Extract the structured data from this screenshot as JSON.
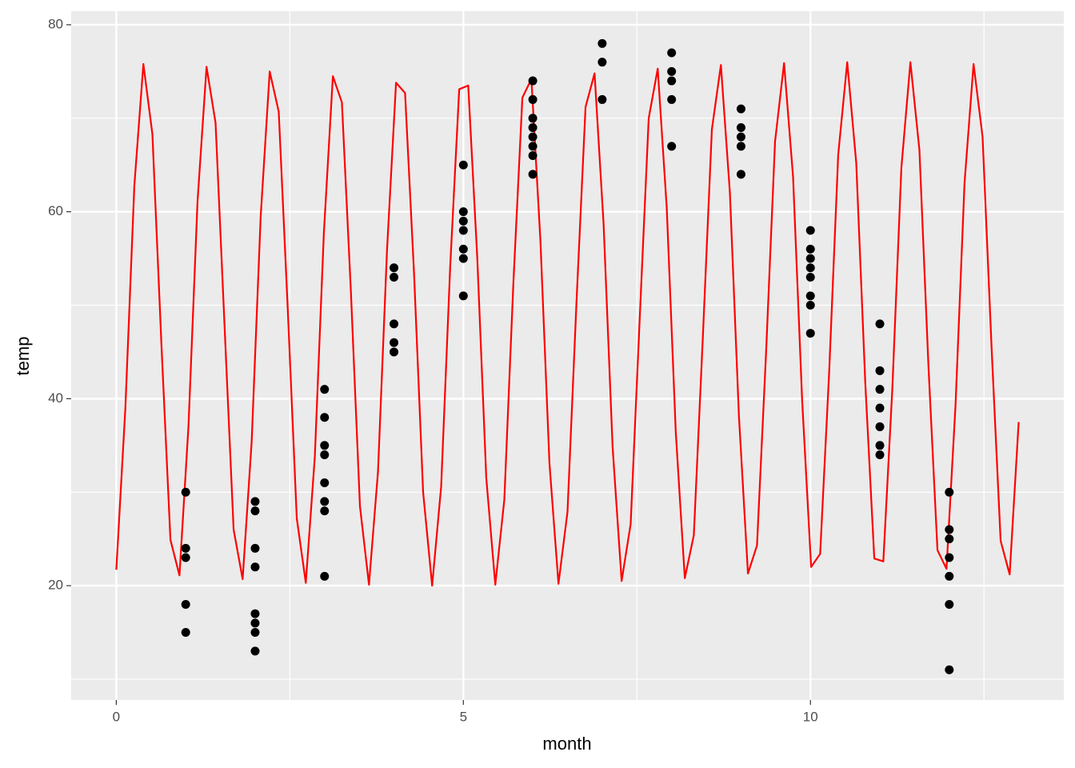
{
  "chart_data": {
    "type": "scatter",
    "x_label": "month",
    "y_label": "temp",
    "xlim": [
      -0.65,
      13.65
    ],
    "ylim": [
      7.77,
      81.45
    ],
    "xticks": [
      0,
      5,
      10
    ],
    "yticks": [
      20,
      40,
      60,
      80
    ],
    "x_minor_ticks": [
      2.5,
      7.5,
      12.5
    ],
    "y_minor_ticks": [
      10,
      30,
      50,
      70
    ],
    "grid": true,
    "panel_color": "#ebebeb",
    "series": [
      {
        "type": "scatter",
        "color": "#000000",
        "x": [
          1,
          1,
          1,
          1,
          1,
          2,
          2,
          2,
          2,
          2,
          2,
          2,
          2,
          3,
          3,
          3,
          3,
          3,
          3,
          3,
          3,
          4,
          4,
          4,
          4,
          4,
          5,
          5,
          5,
          5,
          5,
          5,
          5,
          6,
          6,
          6,
          6,
          6,
          6,
          6,
          6,
          7,
          7,
          7,
          8,
          8,
          8,
          8,
          8,
          9,
          9,
          9,
          9,
          9,
          10,
          10,
          10,
          10,
          10,
          10,
          10,
          10,
          11,
          11,
          11,
          11,
          11,
          11,
          11,
          12,
          12,
          12,
          12,
          12,
          12,
          12
        ],
        "values": [
          30,
          24,
          23,
          18,
          15,
          29,
          28,
          24,
          22,
          17,
          16,
          15,
          13,
          41,
          38,
          35,
          34,
          31,
          29,
          28,
          21,
          54,
          53,
          48,
          46,
          45,
          65,
          60,
          59,
          58,
          56,
          55,
          51,
          74,
          72,
          70,
          69,
          68,
          67,
          66,
          64,
          78,
          76,
          72,
          77,
          75,
          74,
          72,
          67,
          71,
          69,
          68,
          67,
          64,
          58,
          56,
          55,
          54,
          53,
          51,
          50,
          47,
          48,
          43,
          41,
          39,
          37,
          35,
          34,
          30,
          26,
          25,
          23,
          21,
          18,
          11
        ]
      },
      {
        "type": "line",
        "color": "#ff0000",
        "x": [
          0,
          0.13,
          0.26,
          0.39,
          0.52,
          0.65,
          0.78,
          0.91,
          1.04,
          1.17,
          1.3,
          1.43,
          1.56,
          1.69,
          1.82,
          1.95,
          2.08,
          2.21,
          2.34,
          2.47,
          2.6,
          2.73,
          2.86,
          2.99,
          3.12,
          3.25,
          3.38,
          3.51,
          3.64,
          3.77,
          3.9,
          4.03,
          4.16,
          4.29,
          4.42,
          4.55,
          4.68,
          4.81,
          4.94,
          5.07,
          5.2,
          5.33,
          5.46,
          5.59,
          5.72,
          5.85,
          5.98,
          6.11,
          6.24,
          6.37,
          6.5,
          6.63,
          6.76,
          6.89,
          7.02,
          7.15,
          7.28,
          7.41,
          7.54,
          7.67,
          7.8,
          7.93,
          8.06,
          8.19,
          8.32,
          8.45,
          8.58,
          8.71,
          8.84,
          8.97,
          9.1,
          9.23,
          9.36,
          9.49,
          9.62,
          9.75,
          9.88,
          10.01,
          10.14,
          10.27,
          10.4,
          10.53,
          10.66,
          10.79,
          10.92,
          11.05,
          11.18,
          11.31,
          11.44,
          11.57,
          11.7,
          11.83,
          11.96,
          12.09,
          12.22,
          12.35,
          12.48,
          12.61,
          12.74,
          12.87,
          13
        ],
        "values": [
          21.7,
          38.9,
          62.8,
          75.8,
          68.3,
          45.8,
          24.9,
          21.1,
          37.1,
          61.1,
          75.5,
          69.5,
          47.7,
          26.0,
          20.7,
          35.4,
          59.5,
          75.0,
          70.7,
          49.6,
          27.2,
          20.3,
          33.8,
          57.7,
          74.5,
          71.7,
          51.4,
          28.5,
          20.1,
          32.2,
          55.9,
          73.8,
          72.7,
          53.3,
          30.0,
          20.0,
          30.6,
          54.1,
          73.1,
          73.5,
          55.1,
          31.5,
          20.1,
          29.2,
          52.3,
          72.2,
          74.2,
          56.9,
          33.1,
          20.2,
          27.9,
          50.4,
          71.2,
          74.8,
          58.7,
          34.8,
          20.5,
          26.6,
          48.5,
          70.0,
          75.3,
          60.4,
          36.4,
          20.8,
          25.4,
          46.6,
          68.8,
          75.7,
          62.0,
          38.1,
          21.3,
          24.3,
          44.8,
          67.5,
          75.9,
          63.7,
          39.9,
          22.0,
          23.4,
          42.9,
          66.1,
          76.0,
          65.2,
          41.7,
          22.9,
          22.6,
          41.1,
          64.7,
          76.0,
          66.6,
          43.5,
          23.8,
          21.8,
          39.3,
          63.1,
          75.8,
          68.0,
          45.4,
          24.8,
          21.2,
          37.5
        ]
      }
    ]
  }
}
